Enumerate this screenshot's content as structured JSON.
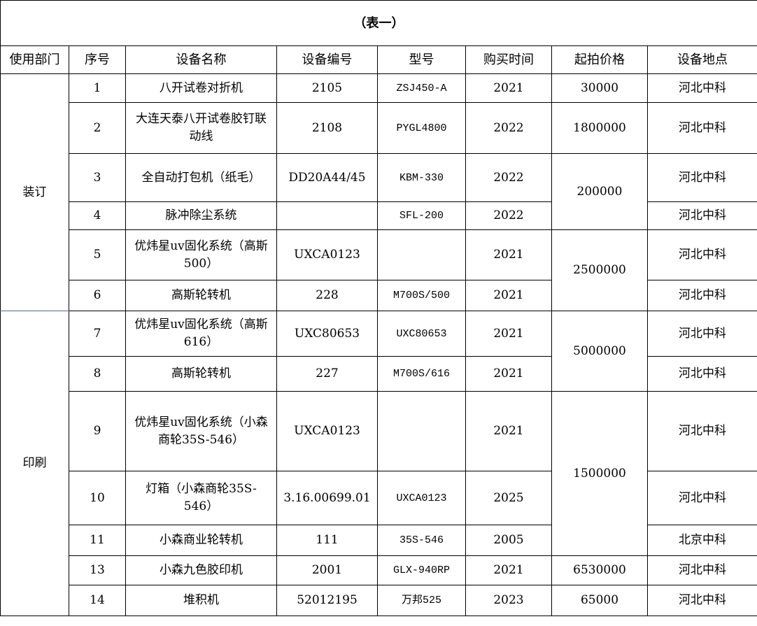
{
  "title": "（表一）",
  "headers": [
    "使用部门",
    "序号",
    "设备名称",
    "设备编号",
    "型号",
    "购买时间",
    "起拍价格",
    "设备地点"
  ],
  "departments": [
    {
      "name": "装订",
      "rows": [
        "1",
        "2",
        "3",
        "4",
        "5",
        "6"
      ]
    },
    {
      "name": "印刷",
      "rows": [
        "7",
        "8",
        "9",
        "10",
        "11",
        "13",
        "14"
      ]
    }
  ],
  "price_groups": [
    {
      "value": "30000",
      "rows": [
        "1"
      ]
    },
    {
      "value": "1800000",
      "rows": [
        "2"
      ]
    },
    {
      "value": "200000",
      "rows": [
        "3",
        "4"
      ]
    },
    {
      "value": "2500000",
      "rows": [
        "5",
        "6"
      ]
    },
    {
      "value": "5000000",
      "rows": [
        "7",
        "8"
      ]
    },
    {
      "value": "1500000",
      "rows": [
        "9",
        "10",
        "11"
      ]
    },
    {
      "value": "6530000",
      "rows": [
        "13"
      ]
    },
    {
      "value": "65000",
      "rows": [
        "14"
      ]
    }
  ],
  "rows": [
    {
      "no": "1",
      "name": "八开试卷对折机",
      "code": "2105",
      "model": "ZSJ450-A",
      "year": "2021",
      "location": "河北中科"
    },
    {
      "no": "2",
      "name": "大连天泰八开试卷胶钉联动线",
      "code": "2108",
      "model": "PYGL4800",
      "year": "2022",
      "location": "河北中科"
    },
    {
      "no": "3",
      "name": "全自动打包机（纸毛）",
      "code": "DD20A44/45",
      "model": "KBM-330",
      "year": "2022",
      "location": "河北中科"
    },
    {
      "no": "4",
      "name": "脉冲除尘系统",
      "code": "",
      "model": "SFL-200",
      "year": "2022",
      "location": "河北中科"
    },
    {
      "no": "5",
      "name": "优炜星uv固化系统（高斯500）",
      "code": "UXCA0123",
      "model": "",
      "year": "2021",
      "location": "河北中科"
    },
    {
      "no": "6",
      "name": "高斯轮转机",
      "code": "228",
      "model": "M700S/500",
      "year": "2021",
      "location": "河北中科"
    },
    {
      "no": "7",
      "name": "优炜星uv固化系统（高斯616）",
      "code": "UXC80653",
      "model": "UXC80653",
      "year": "2021",
      "location": "河北中科"
    },
    {
      "no": "8",
      "name": "高斯轮转机",
      "code": "227",
      "model": "M700S/616",
      "year": "2021",
      "location": "河北中科"
    },
    {
      "no": "9",
      "name": "优炜星uv固化系统（小森商轮35S-546）",
      "code": "UXCA0123",
      "model": "",
      "year": "2021",
      "location": "河北中科"
    },
    {
      "no": "10",
      "name": "灯箱（小森商轮35S-546）",
      "code": "3.16.00699.01",
      "model": "UXCA0123",
      "year": "2025",
      "location": "河北中科"
    },
    {
      "no": "11",
      "name": "小森商业轮转机",
      "code": "111",
      "model": "35S-546",
      "year": "2005",
      "location": "北京中科"
    },
    {
      "no": "13",
      "name": "小森九色胶印机",
      "code": "2001",
      "model": "GLX-940RP",
      "year": "2021",
      "location": "河北中科"
    },
    {
      "no": "14",
      "name": "堆积机",
      "code": "52012195",
      "model": "万邦525",
      "year": "2023",
      "location": "河北中科"
    }
  ]
}
